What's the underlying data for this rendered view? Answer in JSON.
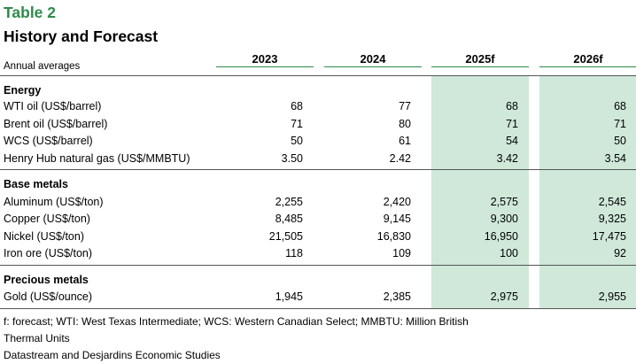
{
  "table": {
    "title": "Table 2",
    "subtitle": "History and Forecast",
    "unit_note": "Annual averages",
    "columns": [
      "2023",
      "2024",
      "2025f",
      "2026f"
    ],
    "highlight_color": "#cfe8d9",
    "accent_color": "#2e8b4a",
    "sections": [
      {
        "name": "Energy",
        "rows": [
          {
            "label": "WTI oil (US$/barrel)",
            "values": [
              "68",
              "77",
              "68",
              "68"
            ]
          },
          {
            "label": "Brent oil (US$/barrel)",
            "values": [
              "71",
              "80",
              "71",
              "71"
            ]
          },
          {
            "label": "WCS (US$/barrel)",
            "values": [
              "50",
              "61",
              "54",
              "50"
            ]
          },
          {
            "label": "Henry Hub natural gas (US$/MMBTU)",
            "values": [
              "3.50",
              "2.42",
              "3.42",
              "3.54"
            ]
          }
        ]
      },
      {
        "name": "Base metals",
        "rows": [
          {
            "label": "Aluminum (US$/ton)",
            "values": [
              "2,255",
              "2,420",
              "2,575",
              "2,545"
            ]
          },
          {
            "label": "Copper (US$/ton)",
            "values": [
              "8,485",
              "9,145",
              "9,300",
              "9,325"
            ]
          },
          {
            "label": "Nickel (US$/ton)",
            "values": [
              "21,505",
              "16,830",
              "16,950",
              "17,475"
            ]
          },
          {
            "label": "Iron ore (US$/ton)",
            "values": [
              "118",
              "109",
              "100",
              "92"
            ]
          }
        ]
      },
      {
        "name": "Precious metals",
        "rows": [
          {
            "label": "Gold (US$/ounce)",
            "values": [
              "1,945",
              "2,385",
              "2,975",
              "2,955"
            ]
          }
        ]
      }
    ],
    "footnote_1": "f: forecast; WTI: West Texas Intermediate; WCS: Western Canadian Select; MMBTU: Million British",
    "footnote_2": "Thermal Units",
    "source": "Datastream and Desjardins Economic Studies"
  }
}
